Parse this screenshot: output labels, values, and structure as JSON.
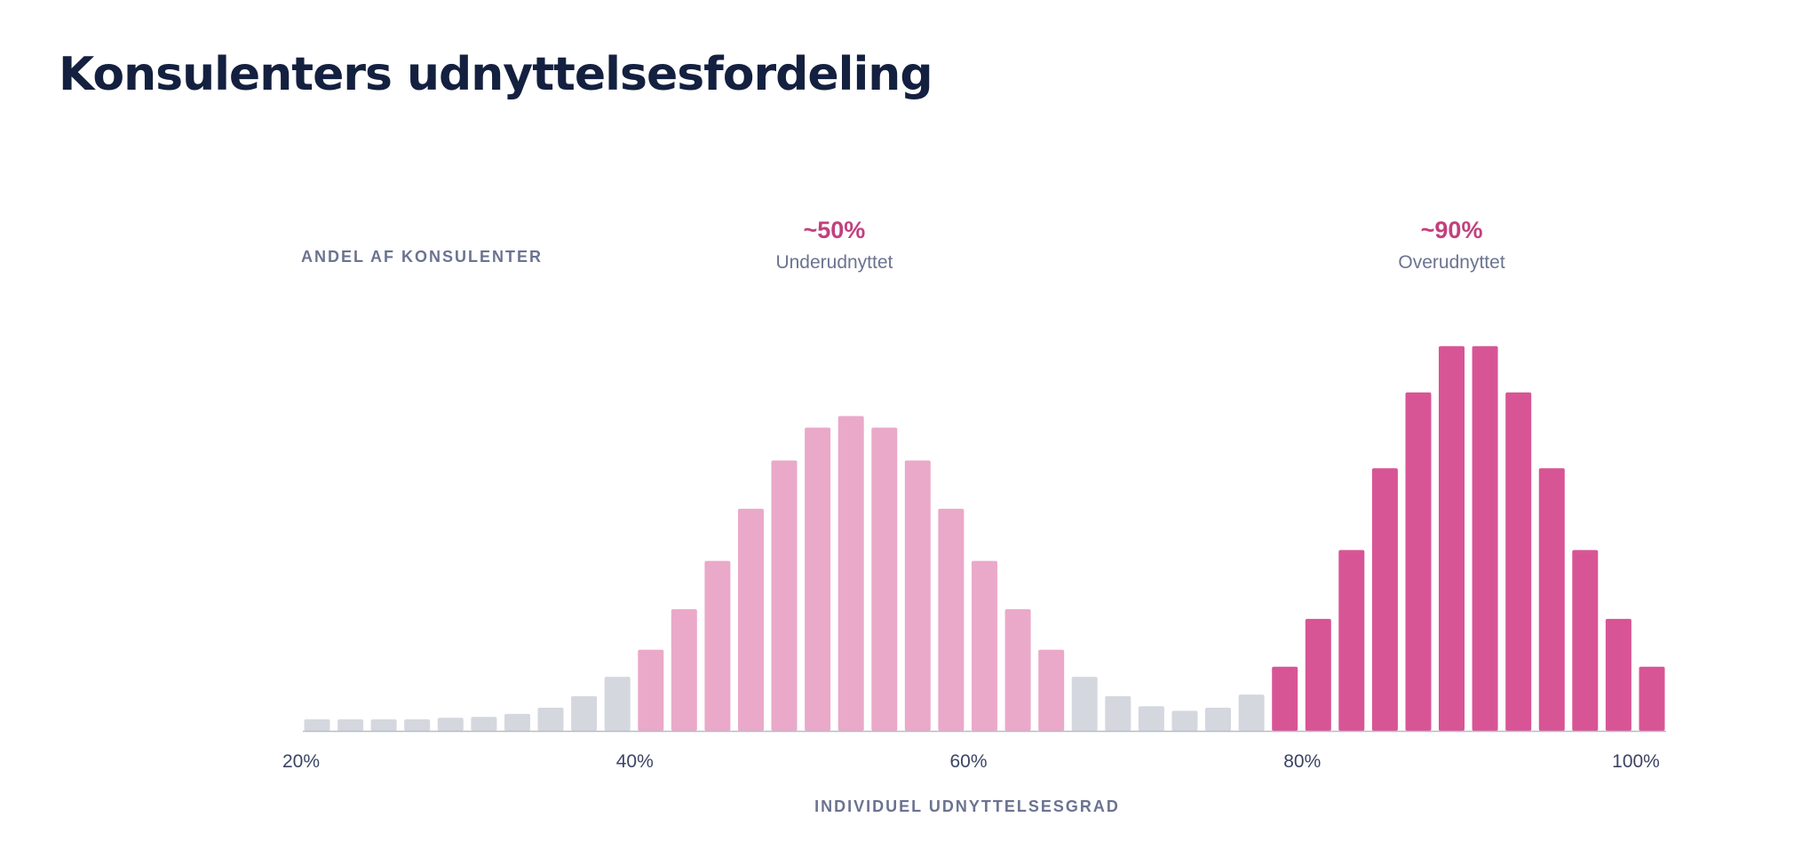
{
  "page": {
    "title": "Konsulenters udnyttelsesfordeling"
  },
  "colors": {
    "title": "#14203f",
    "axis_text": "#6b7390",
    "tick_text": "#3b4463",
    "annotation_value": "#c2407e",
    "neutral_bar": "#d4d7de",
    "under_bar": "#eaa9c9",
    "over_bar": "#d85595",
    "baseline": "#b8bcc8"
  },
  "chart_data": {
    "type": "bar",
    "ylabel": "ANDEL AF KONSULENTER",
    "xlabel": "INDIVIDUEL UDNYTTELSESGRAD",
    "xlim": [
      20,
      100
    ],
    "xticks": [
      "20%",
      "40%",
      "60%",
      "80%",
      "100%"
    ],
    "ylim": [
      0,
      100
    ],
    "grid": false,
    "legend": "none",
    "annotations": [
      {
        "value": "~50%",
        "label": "Underudnyttet",
        "x": 51
      },
      {
        "value": "~90%",
        "label": "Overudnyttet",
        "x": 88
      }
    ],
    "groups": [
      "neutral",
      "underudnyttet",
      "overudnyttet"
    ],
    "x": [
      20,
      22,
      24,
      26,
      28,
      30,
      32,
      34,
      36,
      38,
      40,
      42,
      44,
      46,
      48,
      50,
      52,
      54,
      56,
      58,
      60,
      62,
      64,
      66,
      68,
      70,
      72,
      74,
      76,
      78,
      80,
      82,
      84,
      86,
      88,
      90,
      92,
      94,
      96,
      98,
      100
    ],
    "values": [
      3,
      3,
      3,
      3,
      3.4,
      3.6,
      4.4,
      6,
      9,
      14,
      21,
      31.5,
      44,
      57.5,
      70,
      78.5,
      81.5,
      78.5,
      70,
      57.5,
      44,
      31.5,
      21,
      14,
      9,
      6.4,
      5.2,
      6,
      9.4,
      16.6,
      29,
      46.8,
      68,
      87.6,
      99.6,
      99.6,
      87.6,
      68,
      46.8,
      29,
      16.6
    ],
    "group_index": [
      0,
      0,
      0,
      0,
      0,
      0,
      0,
      0,
      0,
      0,
      1,
      1,
      1,
      1,
      1,
      1,
      1,
      1,
      1,
      1,
      1,
      1,
      1,
      0,
      0,
      0,
      0,
      0,
      0,
      2,
      2,
      2,
      2,
      2,
      2,
      2,
      2,
      2,
      2,
      2,
      2
    ]
  }
}
